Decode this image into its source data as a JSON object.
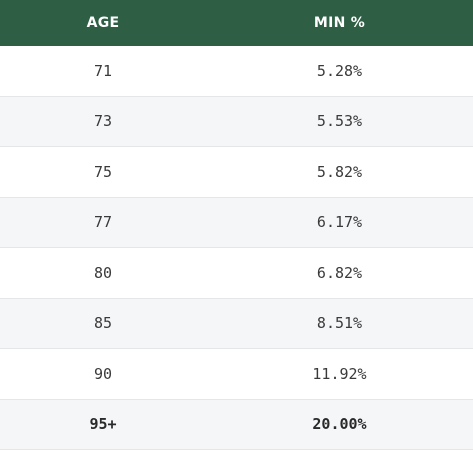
{
  "table": {
    "headers": {
      "age": "AGE",
      "min": "MIN %"
    },
    "rows": [
      {
        "age": "71",
        "min": "5.28%"
      },
      {
        "age": "73",
        "min": "5.53%"
      },
      {
        "age": "75",
        "min": "5.82%"
      },
      {
        "age": "77",
        "min": "6.17%"
      },
      {
        "age": "80",
        "min": "6.82%"
      },
      {
        "age": "85",
        "min": "8.51%"
      },
      {
        "age": "90",
        "min": "11.92%"
      },
      {
        "age": "95+",
        "min": "20.00%"
      }
    ]
  },
  "colors": {
    "header_bg": "#2e5e44",
    "header_text": "#ffffff",
    "stripe": "#f5f6f8"
  }
}
